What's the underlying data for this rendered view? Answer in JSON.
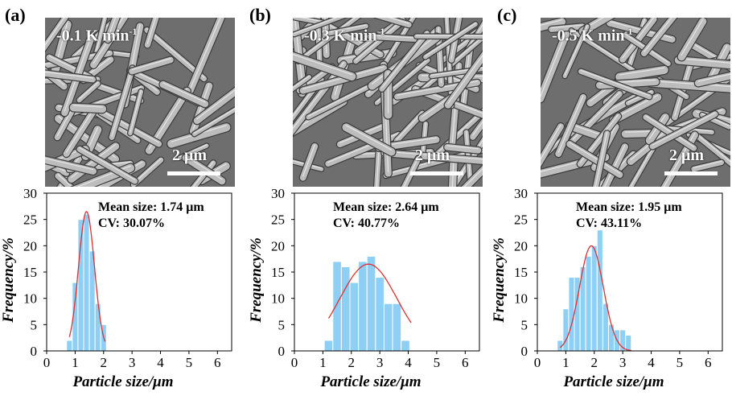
{
  "panels": [
    {
      "label": "(a)",
      "rate_text": "-0.1 K min",
      "rate_sup": "-1",
      "scale_label": "2 μm"
    },
    {
      "label": "(b)",
      "rate_text": "-0.3 K min",
      "rate_sup": "-1",
      "scale_label": "2 μm"
    },
    {
      "label": "(c)",
      "rate_text": "-0.5 K min",
      "rate_sup": "-1",
      "scale_label": "2 μm"
    }
  ],
  "colors": {
    "bar": "#8ecff5",
    "bar_edge": "#6fb8e6",
    "fit": "#e03030",
    "sem_bg": "#6e6e6e",
    "rod": "#bdbdbd"
  },
  "chart_data": [
    {
      "type": "bar",
      "xlabel": "Particle size/μm",
      "ylabel": "Frequency/%",
      "xlim": [
        0,
        6.5
      ],
      "ylim": [
        0,
        30
      ],
      "xticks": [
        0,
        1,
        2,
        3,
        4,
        5,
        6
      ],
      "yticks": [
        0,
        5,
        10,
        15,
        20,
        25,
        30
      ],
      "bin_width": 0.2,
      "annotations": [
        "Mean size: 1.74 μm",
        "CV: 30.07%"
      ],
      "bars": [
        {
          "x": 0.8,
          "y": 2
        },
        {
          "x": 1.0,
          "y": 13
        },
        {
          "x": 1.2,
          "y": 25
        },
        {
          "x": 1.4,
          "y": 26
        },
        {
          "x": 1.6,
          "y": 19
        },
        {
          "x": 1.8,
          "y": 9
        },
        {
          "x": 2.0,
          "y": 5
        }
      ],
      "fit": {
        "type": "gaussian",
        "mean": 1.4,
        "sigma": 0.28,
        "peak": 26.5,
        "x_range": [
          0.8,
          2.05
        ]
      }
    },
    {
      "type": "bar",
      "xlabel": "Particle size/μm",
      "ylabel": "Frequency/%",
      "xlim": [
        0,
        6.5
      ],
      "ylim": [
        0,
        30
      ],
      "xticks": [
        0,
        1,
        2,
        3,
        4,
        5,
        6
      ],
      "yticks": [
        0,
        5,
        10,
        15,
        20,
        25,
        30
      ],
      "bin_width": 0.3,
      "annotations": [
        "Mean size: 2.64 μm",
        "CV: 40.77%"
      ],
      "bars": [
        {
          "x": 1.2,
          "y": 2
        },
        {
          "x": 1.5,
          "y": 17
        },
        {
          "x": 1.8,
          "y": 16
        },
        {
          "x": 2.1,
          "y": 13
        },
        {
          "x": 2.4,
          "y": 17
        },
        {
          "x": 2.7,
          "y": 18
        },
        {
          "x": 3.0,
          "y": 14
        },
        {
          "x": 3.3,
          "y": 9
        },
        {
          "x": 3.6,
          "y": 9
        },
        {
          "x": 3.9,
          "y": 2
        }
      ],
      "fit": {
        "type": "gaussian",
        "mean": 2.6,
        "sigma": 1.0,
        "peak": 16.5,
        "x_range": [
          1.2,
          4.1
        ]
      }
    },
    {
      "type": "bar",
      "xlabel": "Particle size/μm",
      "ylabel": "Frequency/%",
      "xlim": [
        0,
        6.5
      ],
      "ylim": [
        0,
        30
      ],
      "xticks": [
        0,
        1,
        2,
        3,
        4,
        5,
        6
      ],
      "yticks": [
        0,
        5,
        10,
        15,
        20,
        25,
        30
      ],
      "bin_width": 0.2,
      "annotations": [
        "Mean size: 1.95 μm",
        "CV: 43.11%"
      ],
      "bars": [
        {
          "x": 0.8,
          "y": 2
        },
        {
          "x": 1.0,
          "y": 8
        },
        {
          "x": 1.2,
          "y": 14
        },
        {
          "x": 1.4,
          "y": 14
        },
        {
          "x": 1.6,
          "y": 16
        },
        {
          "x": 1.8,
          "y": 18
        },
        {
          "x": 2.0,
          "y": 20
        },
        {
          "x": 2.2,
          "y": 23
        },
        {
          "x": 2.4,
          "y": 9
        },
        {
          "x": 2.6,
          "y": 5
        },
        {
          "x": 2.8,
          "y": 4
        },
        {
          "x": 3.0,
          "y": 4
        },
        {
          "x": 3.2,
          "y": 3
        }
      ],
      "fit": {
        "type": "gaussian",
        "mean": 1.9,
        "sigma": 0.42,
        "peak": 20,
        "x_range": [
          0.8,
          3.3
        ]
      }
    }
  ]
}
